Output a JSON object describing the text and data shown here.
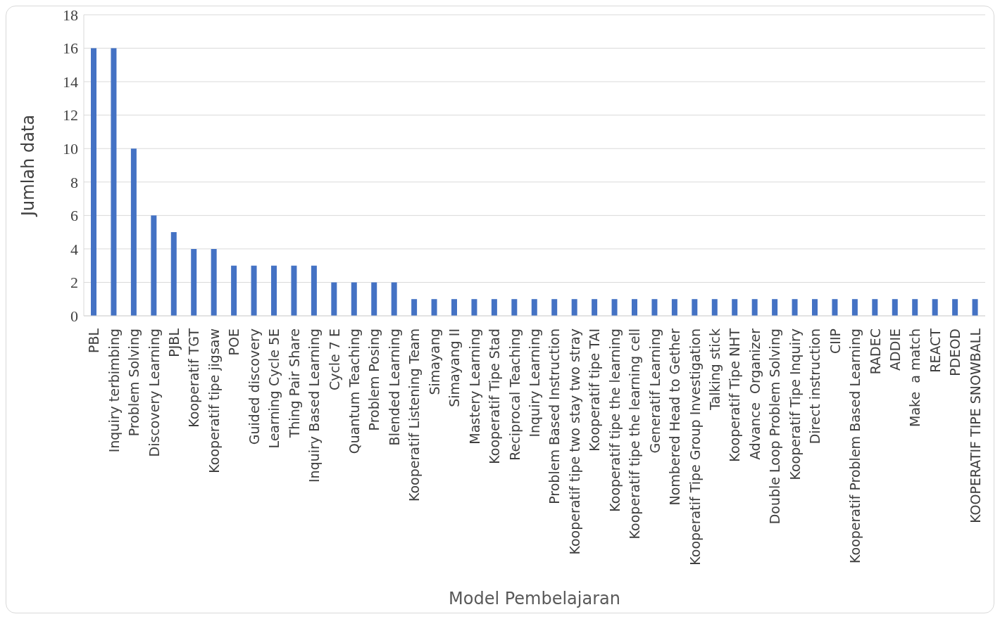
{
  "chart_data": {
    "type": "bar",
    "xlabel": "Model Pembelajaran",
    "ylabel": "Jumlah data",
    "categories": [
      "PBL",
      "Inquiry terbimbing",
      "Problem Solving",
      "Discovery Learning",
      "PJBL",
      "Kooperatif TGT",
      "Kooperatif tipe jigsaw",
      "POE",
      "Guided discovery",
      "Learning Cycle 5E",
      "Thing Pair Share",
      "Inquiry Based Learning",
      "Cycle 7 E",
      "Quantum Teaching",
      "Problem Posing",
      "Blended Learning",
      "Kooperatif Listening Team",
      "Simayang",
      "Simayang II",
      "Mastery Learning",
      "Kooperatif Tipe Stad",
      "Reciprocal Teaching",
      "Inquiry Learning",
      "Problem Based Instruction",
      "Kooperatif tipe two stay two stray",
      "Kooperatif tipe TAI",
      "Kooperatif tipe the learning",
      "Kooperatif tipe the learning cell",
      "Generatif Learning",
      "Nombered Head to Gether",
      "Kooperatif Tipe Group Investigation",
      "Talking stick",
      "Kooperatif Tipe NHT",
      "Advance  Organizer",
      "Double Loop Problem Solving",
      "Kooperatif Tipe Inquiry",
      "Direct instruction",
      "CIIP",
      "Kooperatif Problem Based Learning",
      "RADEC",
      "ADDIE",
      "Make  a match",
      "REACT",
      "PDEOD",
      "KOOPERATIF TIPE SNOWBALL"
    ],
    "values": [
      16,
      16,
      10,
      6,
      5,
      4,
      4,
      3,
      3,
      3,
      3,
      3,
      2,
      2,
      2,
      2,
      1,
      1,
      1,
      1,
      1,
      1,
      1,
      1,
      1,
      1,
      1,
      1,
      1,
      1,
      1,
      1,
      1,
      1,
      1,
      1,
      1,
      1,
      1,
      1,
      1,
      1,
      1,
      1,
      1
    ],
    "color": "#4472c4",
    "ylim": [
      0,
      18
    ],
    "yticks": [
      0,
      2,
      4,
      6,
      8,
      10,
      12,
      14,
      16,
      18
    ],
    "grid": "y"
  }
}
